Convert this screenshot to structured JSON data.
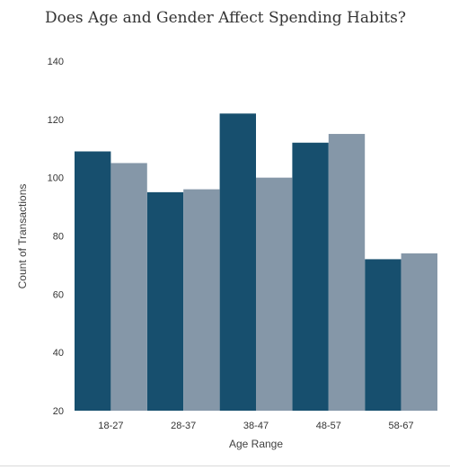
{
  "chart_data": {
    "type": "bar",
    "title": "Does Age and Gender Affect Spending Habits?",
    "xlabel": "Age Range",
    "ylabel": "Count of Transactions",
    "categories": [
      "18-27",
      "28-37",
      "38-47",
      "48-57",
      "58-67"
    ],
    "series": [
      {
        "values": [
          109,
          95,
          122,
          112,
          72
        ],
        "color": "#174f6e"
      },
      {
        "values": [
          105,
          96,
          100,
          115,
          74
        ],
        "color": "#8597a8"
      }
    ],
    "ylim": [
      20,
      140
    ],
    "yticks": [
      "20",
      "40",
      "60",
      "80",
      "100",
      "120",
      "140"
    ],
    "grid": false,
    "legend": "none"
  }
}
